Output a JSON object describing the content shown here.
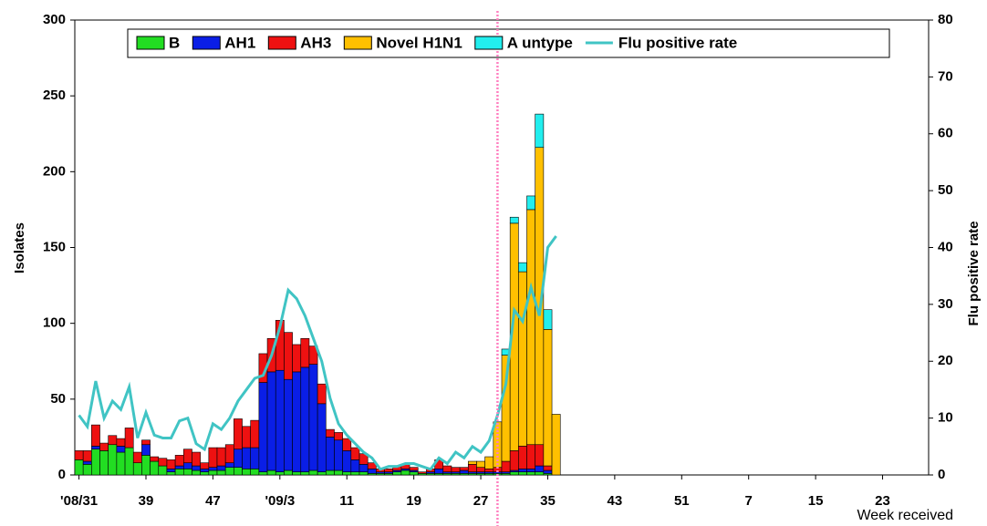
{
  "chart_data": {
    "type": "bar",
    "stacked": true,
    "y_label": "Isolates",
    "y2_label": "Flu positive rate",
    "x_label": "Week received",
    "categories": [
      "'08/31",
      null,
      null,
      null,
      null,
      null,
      null,
      null,
      "39",
      null,
      null,
      null,
      null,
      null,
      null,
      null,
      "47",
      null,
      null,
      null,
      null,
      null,
      null,
      null,
      "'09/3",
      null,
      null,
      null,
      null,
      null,
      null,
      null,
      "11",
      null,
      null,
      null,
      null,
      null,
      null,
      null,
      "19",
      null,
      null,
      null,
      null,
      null,
      null,
      null,
      "27",
      null,
      null,
      null,
      null,
      null,
      null,
      null,
      "35",
      null,
      null,
      null,
      null,
      null,
      null,
      null,
      "43",
      null,
      null,
      null,
      null,
      null,
      null,
      null,
      "51",
      null,
      null,
      null,
      null,
      null,
      null,
      null,
      "7",
      null,
      null,
      null,
      null,
      null,
      null,
      null,
      "15",
      null,
      null,
      null,
      null,
      null,
      null,
      null,
      "23",
      null,
      null,
      null,
      null,
      null
    ],
    "ylim": [
      0,
      300
    ],
    "yticks": [
      0,
      50,
      100,
      150,
      200,
      250,
      300
    ],
    "y2lim": [
      0,
      80
    ],
    "y2ticks": [
      0,
      10,
      20,
      30,
      40,
      50,
      60,
      70,
      80
    ],
    "legend": "top",
    "series": [
      {
        "name": "B",
        "color": "#22dd22",
        "values": [
          10,
          7,
          17,
          16,
          20,
          15,
          18,
          8,
          13,
          9,
          6,
          2,
          4,
          4,
          3,
          2,
          3,
          3,
          5,
          5,
          4,
          4,
          2,
          3,
          2,
          3,
          2,
          2,
          3,
          2,
          3,
          3,
          2,
          2,
          2,
          1,
          1,
          1,
          2,
          3,
          2,
          1,
          1,
          1,
          1,
          1,
          1,
          1,
          1,
          1,
          1,
          1,
          2,
          2,
          2,
          2,
          1,
          0,
          null,
          null,
          null,
          null,
          null,
          null,
          null,
          null,
          null,
          null,
          null,
          null,
          null,
          null,
          null,
          null,
          null,
          null,
          null,
          null,
          null,
          null,
          null,
          null,
          null,
          null,
          null,
          null,
          null,
          null,
          null,
          null,
          null,
          null,
          null,
          null,
          null,
          null,
          null,
          null,
          null,
          null,
          null,
          null
        ]
      },
      {
        "name": "AH1",
        "color": "#0a1ee6",
        "values": [
          0,
          2,
          2,
          0,
          0,
          4,
          0,
          0,
          7,
          0,
          0,
          2,
          2,
          4,
          3,
          2,
          2,
          3,
          3,
          12,
          14,
          14,
          59,
          65,
          67,
          60,
          66,
          69,
          70,
          45,
          22,
          20,
          14,
          8,
          5,
          3,
          1,
          1,
          1,
          1,
          1,
          0,
          1,
          3,
          1,
          1,
          2,
          1,
          1,
          1,
          1,
          1,
          1,
          2,
          2,
          4,
          2,
          0,
          null,
          null,
          null,
          null,
          null,
          null,
          null,
          null,
          null,
          null,
          null,
          null,
          null,
          null,
          null,
          null,
          null,
          null,
          null,
          null,
          null,
          null,
          null,
          null,
          null,
          null,
          null,
          null,
          null,
          null,
          null,
          null,
          null,
          null,
          null,
          null,
          null,
          null,
          null,
          null,
          null,
          null,
          null,
          null
        ]
      },
      {
        "name": "AH3",
        "color": "#ee1111",
        "values": [
          6,
          7,
          14,
          5,
          6,
          5,
          13,
          7,
          3,
          3,
          5,
          6,
          7,
          9,
          9,
          4,
          13,
          12,
          12,
          20,
          14,
          18,
          19,
          22,
          33,
          31,
          18,
          19,
          12,
          13,
          5,
          5,
          8,
          8,
          7,
          4,
          2,
          2,
          3,
          3,
          2,
          1,
          2,
          6,
          4,
          3,
          2,
          5,
          3,
          2,
          3,
          7,
          13,
          15,
          16,
          14,
          3,
          0,
          null,
          null,
          null,
          null,
          null,
          null,
          null,
          null,
          null,
          null,
          null,
          null,
          null,
          null,
          null,
          null,
          null,
          null,
          null,
          null,
          null,
          null,
          null,
          null,
          null,
          null,
          null,
          null,
          null,
          null,
          null,
          null,
          null,
          null,
          null,
          null,
          null,
          null,
          null,
          null,
          null,
          null,
          null,
          null
        ]
      },
      {
        "name": "Novel H1N1",
        "color": "#ffc000",
        "values": [
          0,
          0,
          0,
          0,
          0,
          0,
          0,
          0,
          0,
          0,
          0,
          0,
          0,
          0,
          0,
          0,
          0,
          0,
          0,
          0,
          0,
          0,
          0,
          0,
          0,
          0,
          0,
          0,
          0,
          0,
          0,
          0,
          0,
          0,
          0,
          0,
          0,
          0,
          0,
          0,
          0,
          0,
          0,
          0,
          0,
          0,
          0,
          2,
          4,
          8,
          30,
          70,
          150,
          115,
          155,
          196,
          90,
          40,
          null,
          null,
          null,
          null,
          null,
          null,
          null,
          null,
          null,
          null,
          null,
          null,
          null,
          null,
          null,
          null,
          null,
          null,
          null,
          null,
          null,
          null,
          null,
          null,
          null,
          null,
          null,
          null,
          null,
          null,
          null,
          null,
          null,
          null,
          null,
          null,
          null,
          null,
          null,
          null,
          null,
          null,
          null,
          null
        ]
      },
      {
        "name": "A untype",
        "color": "#22eeee",
        "values": [
          0,
          0,
          0,
          0,
          0,
          0,
          0,
          0,
          0,
          0,
          0,
          0,
          0,
          0,
          0,
          0,
          0,
          0,
          0,
          0,
          0,
          0,
          0,
          0,
          0,
          0,
          0,
          0,
          0,
          0,
          0,
          0,
          0,
          0,
          0,
          0,
          0,
          0,
          0,
          0,
          0,
          0,
          0,
          0,
          0,
          0,
          0,
          0,
          0,
          0,
          0,
          4,
          4,
          6,
          9,
          22,
          13,
          0,
          null,
          null,
          null,
          null,
          null,
          null,
          null,
          null,
          null,
          null,
          null,
          null,
          null,
          null,
          null,
          null,
          null,
          null,
          null,
          null,
          null,
          null,
          null,
          null,
          null,
          null,
          null,
          null,
          null,
          null,
          null,
          null,
          null,
          null,
          null,
          null,
          null,
          null,
          null,
          null,
          null,
          null,
          null,
          null
        ]
      },
      {
        "name": "Flu positive rate",
        "type": "line",
        "axis": "y2",
        "color": "#40c4c4",
        "values": [
          10.5,
          8.5,
          16.5,
          10,
          13,
          11.5,
          15.5,
          6.5,
          11,
          7,
          6.5,
          6.5,
          9.5,
          10,
          5.5,
          4.5,
          9,
          8,
          10,
          13,
          15,
          17,
          17.5,
          21,
          26,
          32.5,
          31,
          28,
          24,
          20,
          13.5,
          9,
          7,
          5.5,
          4,
          3,
          1,
          1.5,
          1.5,
          2,
          2,
          1.5,
          1,
          3,
          2,
          4,
          3,
          5,
          4,
          6,
          10.5,
          16,
          29,
          27,
          33,
          28,
          40,
          42,
          null,
          null,
          null,
          null,
          null,
          null,
          null,
          null,
          null,
          null,
          null,
          null,
          null,
          null,
          null,
          null,
          null,
          null,
          null,
          null,
          null,
          null,
          null,
          null,
          null,
          null,
          null,
          null,
          null,
          null,
          null,
          null,
          null,
          null,
          null,
          null,
          null,
          null,
          null,
          null,
          null,
          null,
          null,
          null
        ]
      }
    ]
  }
}
